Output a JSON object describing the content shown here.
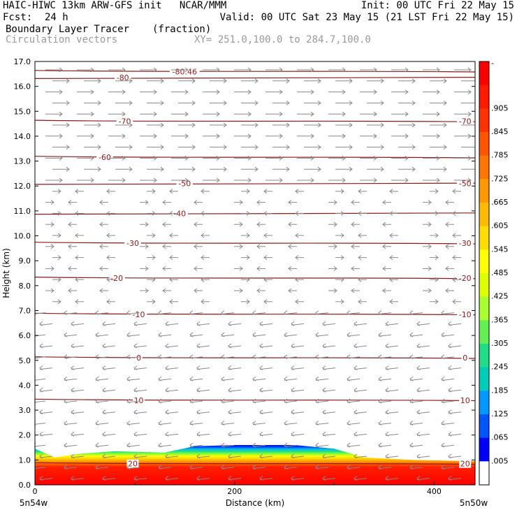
{
  "header": {
    "title_left": "HAIC-HIWC 13km ARW-GFS init   NCAR/MMM",
    "init": "Init: 00 UTC Fri 22 May 15",
    "fcst_label": "Fcst:",
    "fcst_value": "24 h",
    "valid": "Valid: 00 UTC Sat 23 May 15 (21 LST Fri 22 May 15)",
    "field_name": "Boundary Layer Tracer",
    "field_units": "(fraction)",
    "vectors_name": "Circulation vectors",
    "xy_range": "XY= 251.0,100.0 to 284.7,100.0"
  },
  "colors": {
    "contour": "#8b1a1a",
    "vector": "#8a8a8a",
    "header_gray": "#9a9a9a"
  },
  "chart_data": {
    "type": "heatmap",
    "xlabel": "Distance (km)",
    "ylabel": "Height (km)",
    "xlim": [
      0,
      441
    ],
    "ylim": [
      0.0,
      17.0
    ],
    "x_ticks": [
      "0",
      "200",
      "400"
    ],
    "x_tick_values": [
      0,
      200,
      400
    ],
    "x_end_labels": [
      "5n54w",
      "5n50w"
    ],
    "y_ticks": [
      "0.0",
      "1.0",
      "2.0",
      "3.0",
      "4.0",
      "5.0",
      "6.0",
      "7.0",
      "8.0",
      "9.0",
      "10.0",
      "11.0",
      "12.0",
      "13.0",
      "14.0",
      "15.0",
      "16.0",
      "17.0"
    ],
    "colorbar": {
      "labels": [
        "-",
        ".905",
        ".845",
        ".785",
        ".725",
        ".665",
        ".605",
        ".545",
        ".485",
        ".425",
        ".365",
        ".305",
        ".245",
        ".185",
        ".125",
        ".065",
        ".005"
      ],
      "colors": [
        "#ff0000",
        "#ff1a00",
        "#ff3300",
        "#ff5500",
        "#ff7700",
        "#ff9900",
        "#ffbb00",
        "#ffdd00",
        "#ffff00",
        "#ddff00",
        "#aaff33",
        "#66ee55",
        "#22dd88",
        "#00ccbb",
        "#0099ff",
        "#0055ff",
        "#0000ff",
        "#ffffff"
      ]
    },
    "temperature_contours": [
      {
        "label": "-80.46",
        "height": 16.6,
        "label_x": 150
      },
      {
        "label": "-80",
        "height": 16.35,
        "label_x": 88
      },
      {
        "label": "-70",
        "height": 14.6,
        "label_x": 90
      },
      {
        "label": "-70",
        "height": 14.6,
        "label_x": 431
      },
      {
        "label": "-60",
        "height": 13.15,
        "label_x": 70
      },
      {
        "label": "-50",
        "height": 12.1,
        "label_x": 150
      },
      {
        "label": "-50",
        "height": 12.1,
        "label_x": 431
      },
      {
        "label": "-40",
        "height": 10.9,
        "label_x": 145
      },
      {
        "label": "-30",
        "height": 9.7,
        "label_x": 98
      },
      {
        "label": "-30",
        "height": 9.7,
        "label_x": 431
      },
      {
        "label": "-20",
        "height": 8.3,
        "label_x": 82
      },
      {
        "label": "-20",
        "height": 8.3,
        "label_x": 431
      },
      {
        "label": "-10",
        "height": 6.85,
        "label_x": 104
      },
      {
        "label": "-10",
        "height": 6.85,
        "label_x": 431
      },
      {
        "label": "0",
        "height": 5.1,
        "label_x": 104
      },
      {
        "label": "0",
        "height": 5.1,
        "label_x": 431
      },
      {
        "label": "10",
        "height": 3.4,
        "label_x": 104
      },
      {
        "label": "10",
        "height": 3.4,
        "label_x": 431
      },
      {
        "label": "20",
        "height": 0.85,
        "label_x": 98
      },
      {
        "label": "20",
        "height": 0.85,
        "label_x": 431
      }
    ],
    "boundary_layer_top_km": [
      [
        0,
        1.45
      ],
      [
        20,
        1.1
      ],
      [
        45,
        1.25
      ],
      [
        80,
        1.35
      ],
      [
        130,
        1.3
      ],
      [
        160,
        1.55
      ],
      [
        200,
        1.6
      ],
      [
        260,
        1.6
      ],
      [
        300,
        1.45
      ],
      [
        330,
        1.1
      ],
      [
        380,
        1.0
      ],
      [
        441,
        0.95
      ]
    ]
  }
}
